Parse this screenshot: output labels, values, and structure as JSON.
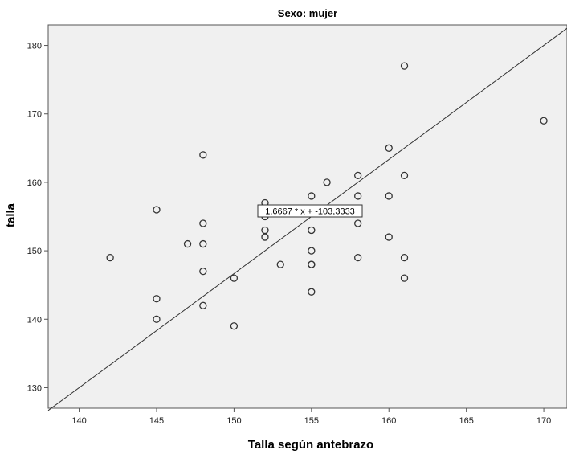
{
  "chart_data": {
    "type": "scatter",
    "title": "Sexo: mujer",
    "xlabel": "Talla según antebrazo",
    "ylabel": "talla",
    "xlim": [
      138,
      171.5
    ],
    "ylim": [
      127,
      183
    ],
    "xticks": [
      140,
      145,
      150,
      155,
      160,
      165,
      170
    ],
    "yticks": [
      130,
      140,
      150,
      160,
      170,
      180
    ],
    "x": [
      142,
      145,
      145,
      145,
      147,
      148,
      148,
      148,
      148,
      148,
      150,
      150,
      152,
      152,
      152,
      152,
      152,
      153,
      155,
      155,
      155,
      155,
      155,
      155,
      156,
      158,
      158,
      158,
      158,
      160,
      160,
      160,
      161,
      161,
      161,
      161,
      170
    ],
    "y": [
      149,
      156,
      143,
      140,
      151,
      164,
      154,
      151,
      147,
      142,
      146,
      139,
      157,
      156,
      155,
      153,
      152,
      148,
      153,
      150,
      148,
      148,
      144,
      158,
      160,
      161,
      158,
      154,
      149,
      165,
      158,
      152,
      177,
      161,
      149,
      146,
      169
    ],
    "fit_line": {
      "slope": 1.6667,
      "intercept": -103.3333
    },
    "annotation": "1,6667 * x + -103,3333",
    "grid": false,
    "colors": {
      "plot_bg": "#f0f0f0",
      "marker": "#333333",
      "line": "#333333"
    }
  }
}
